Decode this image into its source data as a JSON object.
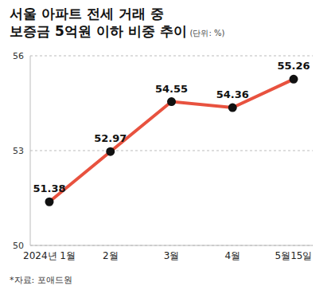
{
  "chart_data": {
    "type": "line",
    "title": "서울 아파트 전세 거래 중\n보증금 5억원 이하 비중 추이",
    "subtitle": "(단위: %)",
    "annotation": "*자료: 포애드원",
    "categories": [
      "2024년 1월",
      "2월",
      "3월",
      "4월",
      "5월15일"
    ],
    "values": [
      51.38,
      52.97,
      54.55,
      54.36,
      55.26
    ],
    "color": "#e8523f",
    "ylim": [
      50,
      56
    ],
    "yticks": [
      50,
      53,
      56
    ],
    "grid": true,
    "data_labels": true,
    "marker": "circle"
  }
}
